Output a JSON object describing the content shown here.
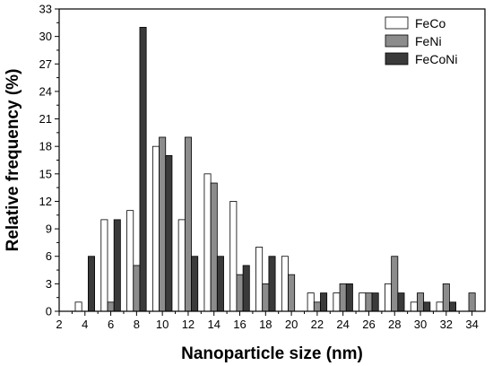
{
  "chart_data": {
    "type": "bar",
    "xlabel": "Nanoparticle size (nm)",
    "ylabel": "Relative frequency (%)",
    "xlim": [
      2,
      35
    ],
    "ylim": [
      0,
      33
    ],
    "xticks": [
      2,
      4,
      6,
      8,
      10,
      12,
      14,
      16,
      18,
      20,
      22,
      24,
      26,
      28,
      30,
      32,
      34
    ],
    "yticks": [
      0,
      3,
      6,
      9,
      12,
      15,
      18,
      21,
      24,
      27,
      30,
      33
    ],
    "legend_position": "top-right",
    "grid": false,
    "categories": [
      4,
      6,
      8,
      10,
      12,
      14,
      16,
      18,
      20,
      22,
      24,
      26,
      28,
      30,
      32,
      34
    ],
    "series": [
      {
        "name": "FeCo",
        "color": "#ffffff",
        "values": [
          1,
          10,
          11,
          18,
          10,
          15,
          12,
          7,
          6,
          2,
          2,
          2,
          3,
          1,
          1,
          0
        ]
      },
      {
        "name": "FeNi",
        "color": "#8c8c8c",
        "values": [
          0,
          1,
          5,
          19,
          19,
          14,
          4,
          3,
          4,
          1,
          3,
          2,
          6,
          2,
          3,
          2
        ]
      },
      {
        "name": "FeCoNi",
        "color": "#3a3a3a",
        "values": [
          6,
          10,
          31,
          17,
          6,
          6,
          5,
          6,
          0,
          2,
          3,
          2,
          2,
          1,
          1,
          0
        ]
      }
    ]
  }
}
